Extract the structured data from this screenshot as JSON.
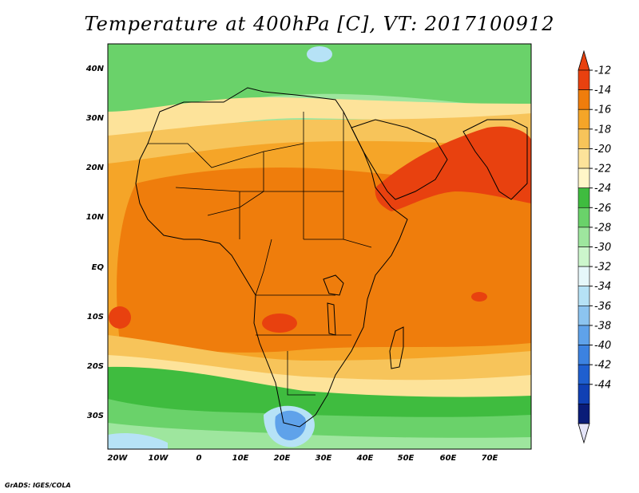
{
  "title": "Temperature at 400hPa [C], VT: 2017100912",
  "footer": "GrADS: IGES/COLA",
  "map": {
    "lat_labels": [
      "40N",
      "30N",
      "20N",
      "10N",
      "EQ",
      "10S",
      "20S",
      "30S"
    ],
    "lon_labels": [
      "20W",
      "10W",
      "0",
      "10E",
      "20E",
      "30E",
      "40E",
      "50E",
      "60E",
      "70E"
    ]
  },
  "colorbar": {
    "labels": [
      "-12",
      "-14",
      "-16",
      "-18",
      "-20",
      "-22",
      "-24",
      "-26",
      "-28",
      "-30",
      "-32",
      "-34",
      "-36",
      "-38",
      "-40",
      "-42",
      "-44"
    ],
    "colors": [
      "#e8410f",
      "#ef7d0c",
      "#f5a528",
      "#f7c45a",
      "#fde39a",
      "#fff6c8",
      "#3fbc3f",
      "#6ad26a",
      "#9ee69e",
      "#ccf6cc",
      "#e6f7fa",
      "#b6e2f6",
      "#8cc4f0",
      "#5fa2ea",
      "#3c82e0",
      "#1f5fcf",
      "#1040b4",
      "#0a1c78"
    ],
    "top_color": "#e8410f",
    "bottom_color": "#e4e4f8"
  }
}
